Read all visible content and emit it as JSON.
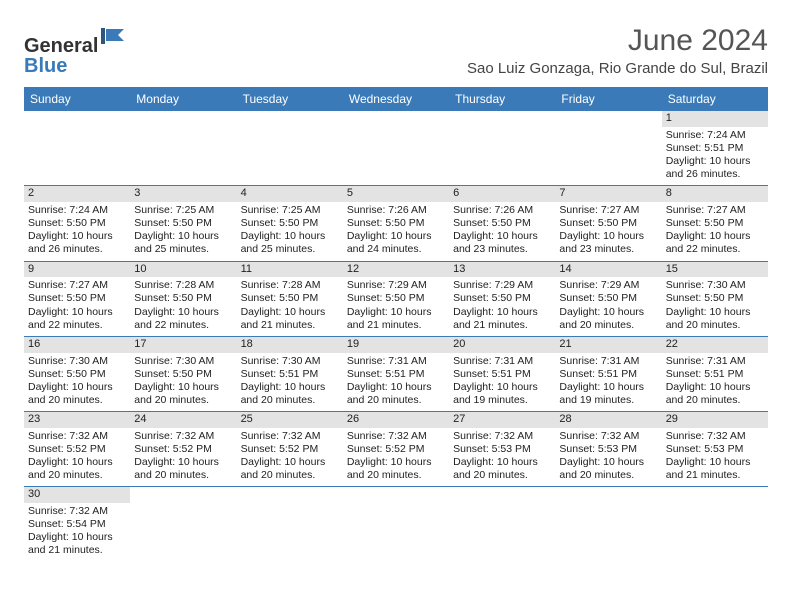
{
  "logo": {
    "line1": "General",
    "line2": "Blue"
  },
  "title": "June 2024",
  "location": "Sao Luiz Gonzaga, Rio Grande do Sul, Brazil",
  "colors": {
    "headerBlue": "#3a7ab8",
    "dayNumBg": "#e3e3e3",
    "textDark": "#222222",
    "titleGrey": "#555555"
  },
  "dayHeaders": [
    "Sunday",
    "Monday",
    "Tuesday",
    "Wednesday",
    "Thursday",
    "Friday",
    "Saturday"
  ],
  "weeks": [
    [
      {
        "n": "",
        "sr": "",
        "ss": "",
        "dl": ""
      },
      {
        "n": "",
        "sr": "",
        "ss": "",
        "dl": ""
      },
      {
        "n": "",
        "sr": "",
        "ss": "",
        "dl": ""
      },
      {
        "n": "",
        "sr": "",
        "ss": "",
        "dl": ""
      },
      {
        "n": "",
        "sr": "",
        "ss": "",
        "dl": ""
      },
      {
        "n": "",
        "sr": "",
        "ss": "",
        "dl": ""
      },
      {
        "n": "1",
        "sr": "Sunrise: 7:24 AM",
        "ss": "Sunset: 5:51 PM",
        "dl": "Daylight: 10 hours and 26 minutes."
      }
    ],
    [
      {
        "n": "2",
        "sr": "Sunrise: 7:24 AM",
        "ss": "Sunset: 5:50 PM",
        "dl": "Daylight: 10 hours and 26 minutes."
      },
      {
        "n": "3",
        "sr": "Sunrise: 7:25 AM",
        "ss": "Sunset: 5:50 PM",
        "dl": "Daylight: 10 hours and 25 minutes."
      },
      {
        "n": "4",
        "sr": "Sunrise: 7:25 AM",
        "ss": "Sunset: 5:50 PM",
        "dl": "Daylight: 10 hours and 25 minutes."
      },
      {
        "n": "5",
        "sr": "Sunrise: 7:26 AM",
        "ss": "Sunset: 5:50 PM",
        "dl": "Daylight: 10 hours and 24 minutes."
      },
      {
        "n": "6",
        "sr": "Sunrise: 7:26 AM",
        "ss": "Sunset: 5:50 PM",
        "dl": "Daylight: 10 hours and 23 minutes."
      },
      {
        "n": "7",
        "sr": "Sunrise: 7:27 AM",
        "ss": "Sunset: 5:50 PM",
        "dl": "Daylight: 10 hours and 23 minutes."
      },
      {
        "n": "8",
        "sr": "Sunrise: 7:27 AM",
        "ss": "Sunset: 5:50 PM",
        "dl": "Daylight: 10 hours and 22 minutes."
      }
    ],
    [
      {
        "n": "9",
        "sr": "Sunrise: 7:27 AM",
        "ss": "Sunset: 5:50 PM",
        "dl": "Daylight: 10 hours and 22 minutes."
      },
      {
        "n": "10",
        "sr": "Sunrise: 7:28 AM",
        "ss": "Sunset: 5:50 PM",
        "dl": "Daylight: 10 hours and 22 minutes."
      },
      {
        "n": "11",
        "sr": "Sunrise: 7:28 AM",
        "ss": "Sunset: 5:50 PM",
        "dl": "Daylight: 10 hours and 21 minutes."
      },
      {
        "n": "12",
        "sr": "Sunrise: 7:29 AM",
        "ss": "Sunset: 5:50 PM",
        "dl": "Daylight: 10 hours and 21 minutes."
      },
      {
        "n": "13",
        "sr": "Sunrise: 7:29 AM",
        "ss": "Sunset: 5:50 PM",
        "dl": "Daylight: 10 hours and 21 minutes."
      },
      {
        "n": "14",
        "sr": "Sunrise: 7:29 AM",
        "ss": "Sunset: 5:50 PM",
        "dl": "Daylight: 10 hours and 20 minutes."
      },
      {
        "n": "15",
        "sr": "Sunrise: 7:30 AM",
        "ss": "Sunset: 5:50 PM",
        "dl": "Daylight: 10 hours and 20 minutes."
      }
    ],
    [
      {
        "n": "16",
        "sr": "Sunrise: 7:30 AM",
        "ss": "Sunset: 5:50 PM",
        "dl": "Daylight: 10 hours and 20 minutes."
      },
      {
        "n": "17",
        "sr": "Sunrise: 7:30 AM",
        "ss": "Sunset: 5:50 PM",
        "dl": "Daylight: 10 hours and 20 minutes."
      },
      {
        "n": "18",
        "sr": "Sunrise: 7:30 AM",
        "ss": "Sunset: 5:51 PM",
        "dl": "Daylight: 10 hours and 20 minutes."
      },
      {
        "n": "19",
        "sr": "Sunrise: 7:31 AM",
        "ss": "Sunset: 5:51 PM",
        "dl": "Daylight: 10 hours and 20 minutes."
      },
      {
        "n": "20",
        "sr": "Sunrise: 7:31 AM",
        "ss": "Sunset: 5:51 PM",
        "dl": "Daylight: 10 hours and 19 minutes."
      },
      {
        "n": "21",
        "sr": "Sunrise: 7:31 AM",
        "ss": "Sunset: 5:51 PM",
        "dl": "Daylight: 10 hours and 19 minutes."
      },
      {
        "n": "22",
        "sr": "Sunrise: 7:31 AM",
        "ss": "Sunset: 5:51 PM",
        "dl": "Daylight: 10 hours and 20 minutes."
      }
    ],
    [
      {
        "n": "23",
        "sr": "Sunrise: 7:32 AM",
        "ss": "Sunset: 5:52 PM",
        "dl": "Daylight: 10 hours and 20 minutes."
      },
      {
        "n": "24",
        "sr": "Sunrise: 7:32 AM",
        "ss": "Sunset: 5:52 PM",
        "dl": "Daylight: 10 hours and 20 minutes."
      },
      {
        "n": "25",
        "sr": "Sunrise: 7:32 AM",
        "ss": "Sunset: 5:52 PM",
        "dl": "Daylight: 10 hours and 20 minutes."
      },
      {
        "n": "26",
        "sr": "Sunrise: 7:32 AM",
        "ss": "Sunset: 5:52 PM",
        "dl": "Daylight: 10 hours and 20 minutes."
      },
      {
        "n": "27",
        "sr": "Sunrise: 7:32 AM",
        "ss": "Sunset: 5:53 PM",
        "dl": "Daylight: 10 hours and 20 minutes."
      },
      {
        "n": "28",
        "sr": "Sunrise: 7:32 AM",
        "ss": "Sunset: 5:53 PM",
        "dl": "Daylight: 10 hours and 20 minutes."
      },
      {
        "n": "29",
        "sr": "Sunrise: 7:32 AM",
        "ss": "Sunset: 5:53 PM",
        "dl": "Daylight: 10 hours and 21 minutes."
      }
    ],
    [
      {
        "n": "30",
        "sr": "Sunrise: 7:32 AM",
        "ss": "Sunset: 5:54 PM",
        "dl": "Daylight: 10 hours and 21 minutes."
      },
      {
        "n": "",
        "sr": "",
        "ss": "",
        "dl": ""
      },
      {
        "n": "",
        "sr": "",
        "ss": "",
        "dl": ""
      },
      {
        "n": "",
        "sr": "",
        "ss": "",
        "dl": ""
      },
      {
        "n": "",
        "sr": "",
        "ss": "",
        "dl": ""
      },
      {
        "n": "",
        "sr": "",
        "ss": "",
        "dl": ""
      },
      {
        "n": "",
        "sr": "",
        "ss": "",
        "dl": ""
      }
    ]
  ]
}
